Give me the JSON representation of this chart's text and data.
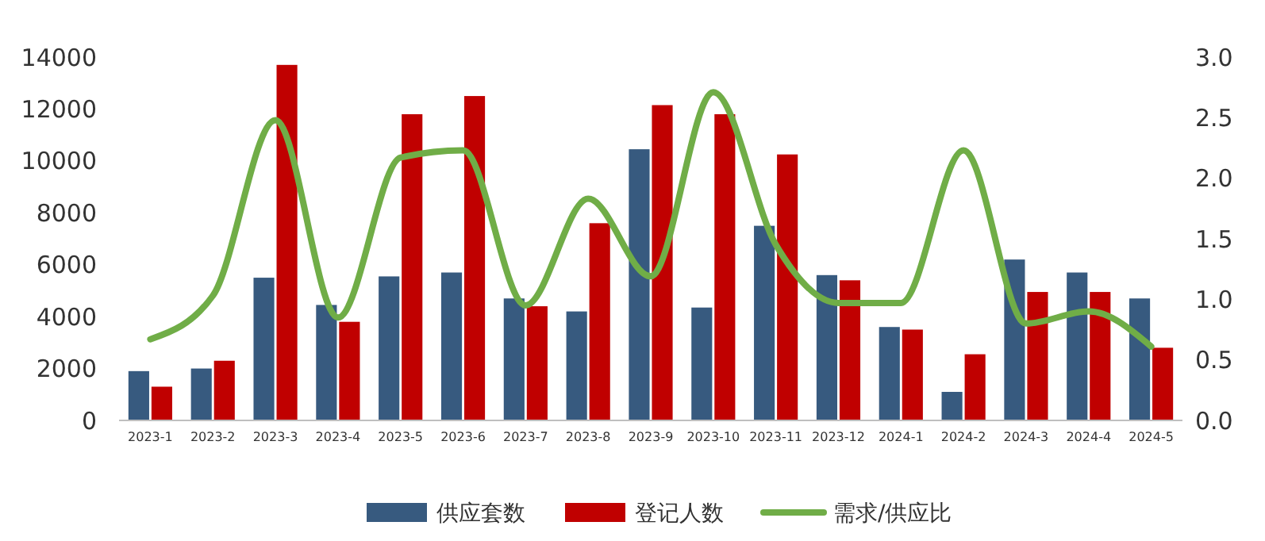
{
  "chart_data": {
    "type": "bar",
    "categories": [
      "2023-1",
      "2023-2",
      "2023-3",
      "2023-4",
      "2023-5",
      "2023-6",
      "2023-7",
      "2023-8",
      "2023-9",
      "2023-10",
      "2023-11",
      "2023-12",
      "2024-1",
      "2024-2",
      "2024-3",
      "2024-4",
      "2024-5"
    ],
    "series": [
      {
        "name": "供应套数",
        "color": "#375a7f",
        "values": [
          1900,
          2000,
          5500,
          4450,
          5550,
          5700,
          4700,
          4200,
          10450,
          4350,
          7500,
          5600,
          3600,
          1100,
          6200,
          5700,
          4700
        ]
      },
      {
        "name": "登记人数",
        "color": "#c00000",
        "values": [
          1300,
          2300,
          13700,
          3800,
          11800,
          12500,
          4400,
          7600,
          12150,
          11800,
          10250,
          5400,
          3500,
          2550,
          4950,
          4950,
          2800
        ]
      },
      {
        "name": "需求/供应比",
        "type": "line",
        "axis": "y2",
        "color": "#70ad47",
        "values": [
          0.67,
          1.03,
          2.48,
          0.85,
          2.17,
          2.23,
          0.95,
          1.83,
          1.19,
          2.71,
          1.45,
          0.97,
          0.97,
          2.23,
          0.8,
          0.9,
          0.61
        ]
      }
    ],
    "ylim": [
      0,
      14000
    ],
    "yticks": [
      0,
      2000,
      4000,
      6000,
      8000,
      10000,
      12000,
      14000
    ],
    "y2lim": [
      0,
      3
    ],
    "y2ticks": [
      {
        "value": 0,
        "label": "0.0"
      },
      {
        "value": 0.5,
        "label": "0.5"
      },
      {
        "value": 1,
        "label": "1.0"
      },
      {
        "value": 1.5,
        "label": "1.5"
      },
      {
        "value": 2,
        "label": "2.0"
      },
      {
        "value": 2.5,
        "label": "2.5"
      },
      {
        "value": 3,
        "label": "3.0"
      }
    ],
    "legend": "bottom",
    "grid": false,
    "marker": "none",
    "line_style": "solid"
  }
}
